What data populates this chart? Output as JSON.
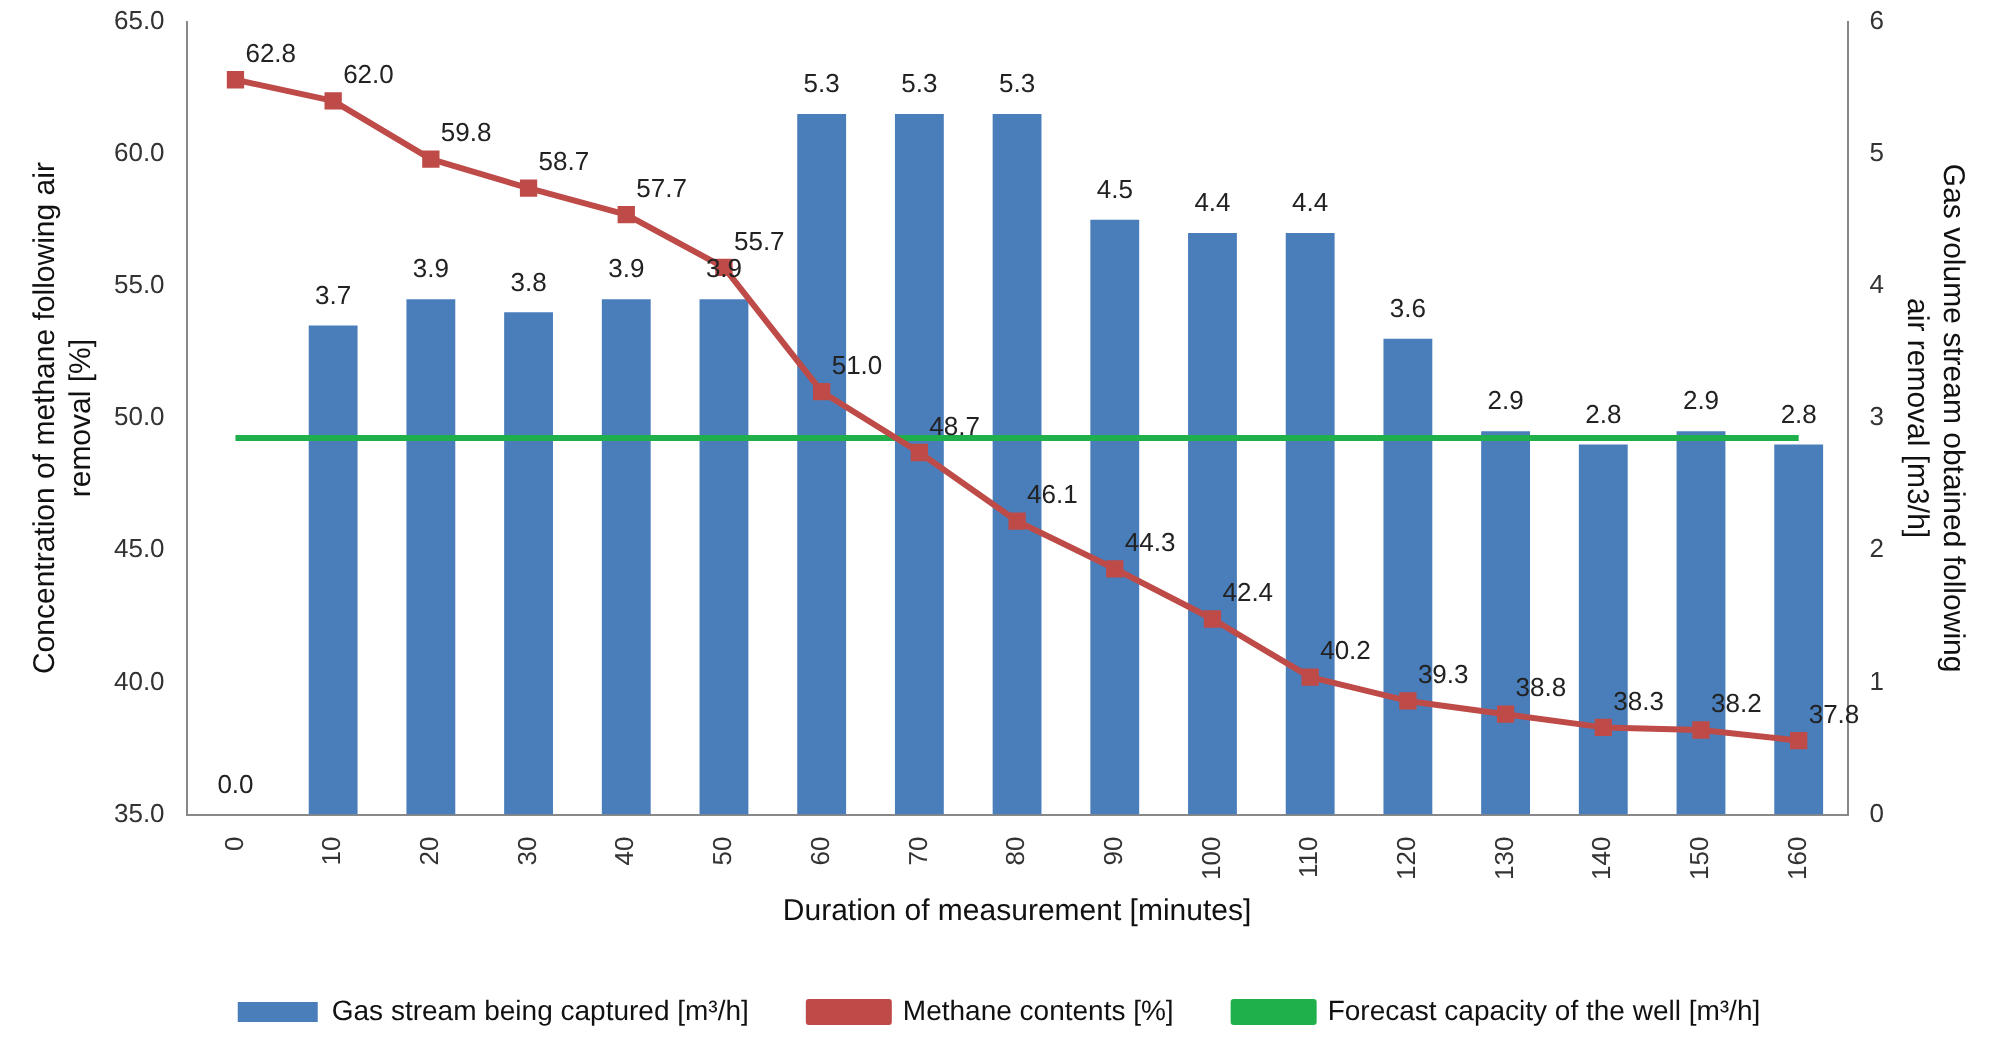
{
  "chart_data": {
    "type": "bar",
    "xlabel": "Duration of measurement [minutes]",
    "ylabel": "Concentration of methane following air removal [%]",
    "y2label": "Gas volume stream obtained following air removal [m3/h]",
    "categories": [
      "0",
      "10",
      "20",
      "30",
      "40",
      "50",
      "60",
      "70",
      "80",
      "90",
      "100",
      "110",
      "120",
      "130",
      "140",
      "150",
      "160"
    ],
    "series": [
      {
        "name": "Gas stream being captured [m³/h]",
        "axis": "y2",
        "color": "#4a7ebb",
        "values": [
          0.0,
          3.7,
          3.9,
          3.8,
          3.9,
          3.9,
          5.3,
          5.3,
          5.3,
          4.5,
          4.4,
          4.4,
          3.6,
          2.9,
          2.8,
          2.9,
          2.8
        ],
        "value_labels": [
          "0.0",
          "3.7",
          "3.9",
          "3.8",
          "3.9",
          "3.9",
          "5.3",
          "5.3",
          "5.3",
          "4.5",
          "4.4",
          "4.4",
          "3.6",
          "2.9",
          "2.8",
          "2.9",
          "2.8"
        ]
      },
      {
        "name": "Methane contents [%]",
        "type": "line",
        "axis": "y",
        "color": "#be4b48",
        "marker": "square",
        "values": [
          62.8,
          62.0,
          59.8,
          58.7,
          57.7,
          55.7,
          51.0,
          48.7,
          46.1,
          44.3,
          42.4,
          40.2,
          39.3,
          38.8,
          38.3,
          38.2,
          37.8
        ],
        "value_labels": [
          "62.8",
          "62.0",
          "59.8",
          "58.7",
          "57.7",
          "55.7",
          "51.0",
          "48.7",
          "46.1",
          "44.3",
          "42.4",
          "40.2",
          "39.3",
          "38.8",
          "38.3",
          "38.2",
          "37.8"
        ]
      },
      {
        "name": "Forecast capacity of the well [m³/h]",
        "type": "line",
        "axis": "y2",
        "color": "#1fb04b",
        "marker": "none",
        "values": [
          2.85,
          2.85,
          2.85,
          2.85,
          2.85,
          2.85,
          2.85,
          2.85,
          2.85,
          2.85,
          2.85,
          2.85,
          2.85,
          2.85,
          2.85,
          2.85,
          2.85
        ]
      }
    ],
    "ylim": [
      35,
      65
    ],
    "yticks": [
      {
        "value": 35,
        "label": "35.0"
      },
      {
        "value": 40,
        "label": "40.0"
      },
      {
        "value": 45,
        "label": "45.0"
      },
      {
        "value": 50,
        "label": "50.0"
      },
      {
        "value": 55,
        "label": "55.0"
      },
      {
        "value": 60,
        "label": "60.0"
      },
      {
        "value": 65,
        "label": "65.0"
      }
    ],
    "y2lim": [
      0,
      6
    ],
    "y2ticks": [
      0,
      1,
      2,
      3,
      4,
      5,
      6
    ],
    "grid": false,
    "legend": "bottom"
  }
}
